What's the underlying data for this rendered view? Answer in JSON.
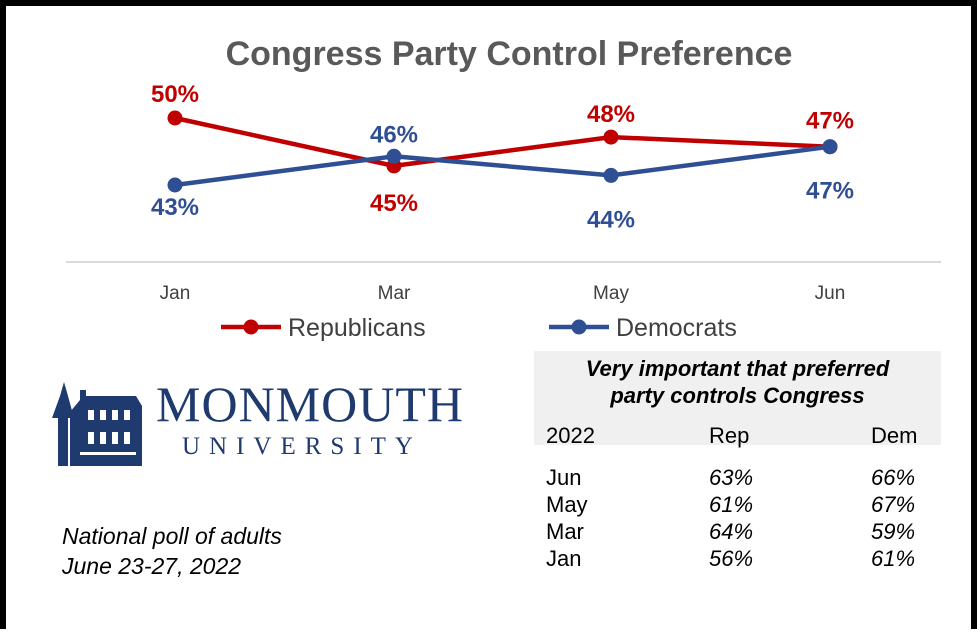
{
  "chart_data": {
    "type": "line",
    "title": "Congress Party Control Preference",
    "categories": [
      "Jan",
      "Mar",
      "May",
      "Jun"
    ],
    "series": [
      {
        "name": "Republicans",
        "values": [
          50,
          45,
          48,
          47
        ],
        "labels": [
          "50%",
          "45%",
          "48%",
          "47%"
        ],
        "color": "#c00000"
      },
      {
        "name": "Democrats",
        "values": [
          43,
          46,
          44,
          47
        ],
        "labels": [
          "43%",
          "46%",
          "44%",
          "47%"
        ],
        "color": "#2f4f94"
      }
    ],
    "ylim": [
      40,
      52
    ],
    "legend_position": "bottom",
    "grid": false
  },
  "logo": {
    "name": "MONMOUTH",
    "sub": "UNIVERSITY",
    "color": "#1f3a6e"
  },
  "footnote": {
    "line1": "National poll of adults",
    "line2": "June 23-27, 2022"
  },
  "table": {
    "title_line1": "Very important that preferred",
    "title_line2": "party controls Congress",
    "headers": [
      "2022",
      "Rep",
      "Dem"
    ],
    "rows": [
      [
        "Jun",
        "63%",
        "66%"
      ],
      [
        "May",
        "61%",
        "67%"
      ],
      [
        "Mar",
        "64%",
        "59%"
      ],
      [
        "Jan",
        "56%",
        "61%"
      ]
    ],
    "background": "#f0f0f0"
  }
}
